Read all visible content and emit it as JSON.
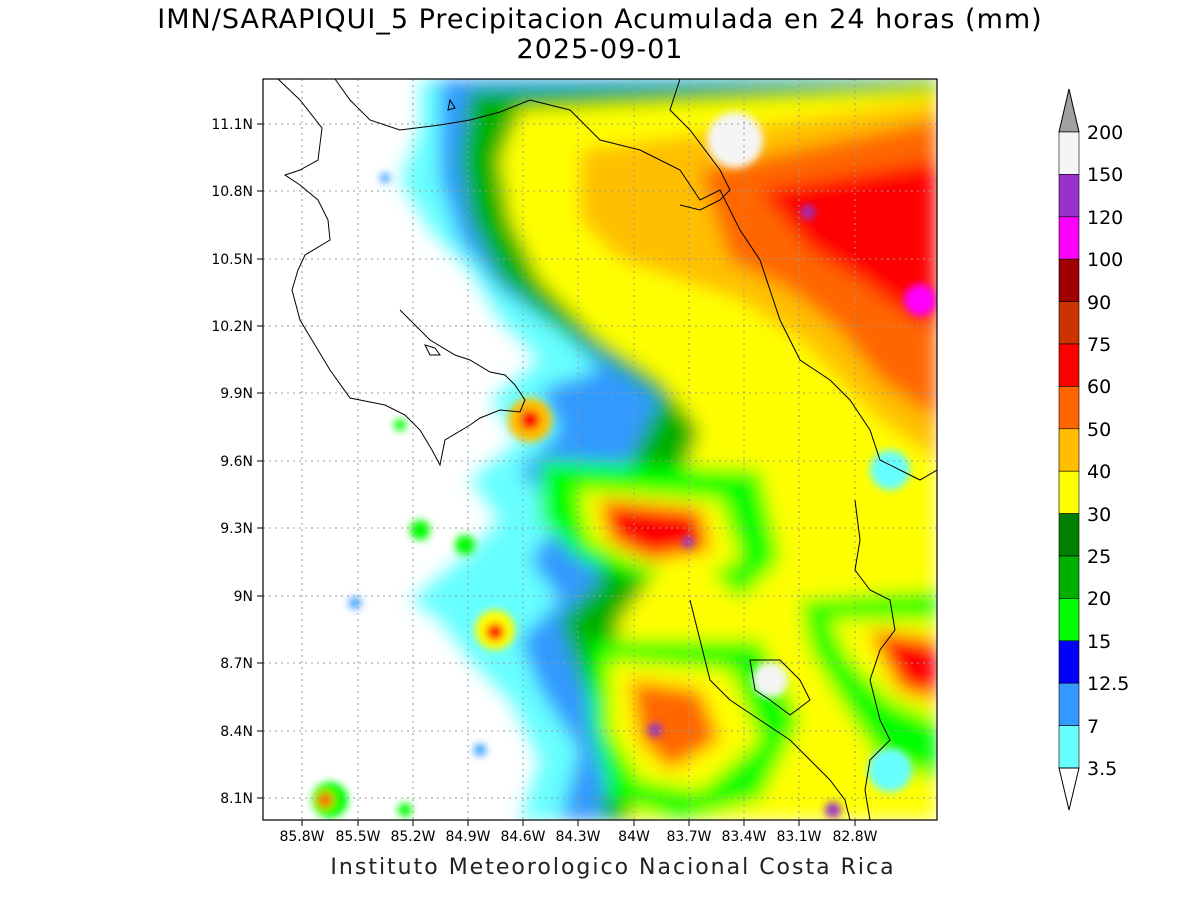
{
  "map": {
    "title": "IMN/SARAPIQUI_5 Precipitacion Acumulada en 24 horas (mm)",
    "subtitle": "2025-09-01",
    "footer": "Instituto Meteorologico Nacional Costa Rica",
    "lat_ticks": [
      "11.1N",
      "10.8N",
      "10.5N",
      "10.2N",
      "9.9N",
      "9.6N",
      "9.3N",
      "9N",
      "8.7N",
      "8.4N",
      "8.1N"
    ],
    "lon_ticks": [
      "85.8W",
      "85.5W",
      "85.2W",
      "84.9W",
      "84.6W",
      "84.3W",
      "84W",
      "83.7W",
      "83.4W",
      "83.1W",
      "82.8W"
    ],
    "grid": true
  },
  "colorbar": {
    "levels": [
      "200",
      "150",
      "120",
      "100",
      "90",
      "75",
      "60",
      "50",
      "40",
      "30",
      "25",
      "20",
      "15",
      "12.5",
      "7",
      "3.5"
    ],
    "colors": [
      "#a0a0a0",
      "#f5f5f5",
      "#9932cc",
      "#ff00ff",
      "#a00000",
      "#cc3300",
      "#ff0000",
      "#ff6600",
      "#ffbf00",
      "#ffff00",
      "#008000",
      "#00b000",
      "#00ff00",
      "#0000ff",
      "#3399ff",
      "#66ffff"
    ]
  }
}
